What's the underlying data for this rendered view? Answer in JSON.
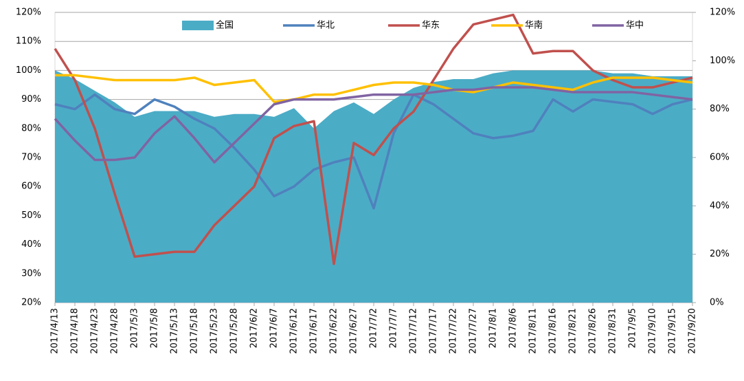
{
  "chart_data": {
    "type": "line",
    "categories": [
      "2017/4/13",
      "2017/4/18",
      "2017/4/23",
      "2017/4/28",
      "2017/5/3",
      "2017/5/8",
      "2017/5/13",
      "2017/5/18",
      "2017/5/23",
      "2017/5/28",
      "2017/6/2",
      "2017/6/7",
      "2017/6/12",
      "2017/6/17",
      "2017/6/22",
      "2017/6/27",
      "2017/7/2",
      "2017/7/7",
      "2017/7/12",
      "2017/7/17",
      "2017/7/22",
      "2017/7/27",
      "2017/8/1",
      "2017/8/6",
      "2017/8/11",
      "2017/8/16",
      "2017/8/21",
      "2017/8/26",
      "2017/8/31",
      "2017/9/5",
      "2017/9/10",
      "2017/9/15",
      "2017/9/20"
    ],
    "series": [
      {
        "name": "全国",
        "type": "area",
        "color": "#4bacc6",
        "values": [
          100,
          97,
          93,
          89,
          84,
          86,
          86,
          86,
          84,
          85,
          85,
          84,
          87,
          80,
          86,
          89,
          85,
          90,
          94,
          96,
          97,
          97,
          99,
          100,
          100,
          100,
          100,
          100,
          99,
          99,
          98,
          98,
          98
        ]
      },
      {
        "name": "华北",
        "type": "line",
        "axis": "y2",
        "color": "#4f81bd",
        "values": [
          82,
          80,
          86,
          80,
          78,
          84,
          81,
          76,
          72,
          64,
          55,
          44,
          48,
          55,
          58,
          60,
          39,
          70,
          86,
          82,
          76,
          70,
          68,
          69,
          71,
          84,
          79,
          84,
          83,
          82,
          78,
          82,
          84
        ]
      },
      {
        "name": "华东",
        "type": "line",
        "axis": "y2",
        "color": "#c0504d",
        "values": [
          105,
          92,
          72,
          45,
          19,
          20,
          21,
          21,
          32,
          40,
          48,
          68,
          73,
          75,
          16,
          66,
          61,
          72,
          79,
          92,
          105,
          115,
          117,
          119,
          103,
          104,
          104,
          96,
          92,
          89,
          89,
          91,
          93
        ]
      },
      {
        "name": "华南",
        "type": "line",
        "axis": "y2",
        "color": "#ffc000",
        "values": [
          94,
          94,
          93,
          92,
          92,
          92,
          92,
          93,
          90,
          91,
          92,
          83,
          84,
          86,
          86,
          88,
          90,
          91,
          91,
          90,
          88,
          87,
          89,
          91,
          90,
          89,
          88,
          91,
          93,
          93,
          93,
          92,
          91
        ]
      },
      {
        "name": "华中",
        "type": "line",
        "axis": "y2",
        "color": "#8064a2",
        "values": [
          76,
          67,
          59,
          59,
          60,
          70,
          77,
          68,
          58,
          66,
          74,
          82,
          84,
          84,
          84,
          85,
          86,
          86,
          86,
          87,
          88,
          88,
          89,
          89,
          89,
          88,
          87,
          87,
          87,
          87,
          86,
          85,
          84
        ]
      }
    ],
    "ylim": [
      20,
      120
    ],
    "yticks": [
      {
        "value": 20,
        "label": "20%"
      },
      {
        "value": 30,
        "label": "30%"
      },
      {
        "value": 40,
        "label": "40%"
      },
      {
        "value": 50,
        "label": "50%"
      },
      {
        "value": 60,
        "label": "60%"
      },
      {
        "value": 70,
        "label": "70%"
      },
      {
        "value": 80,
        "label": "80%"
      },
      {
        "value": 90,
        "label": "90%"
      },
      {
        "value": 100,
        "label": "100%"
      },
      {
        "value": 110,
        "label": "110%"
      },
      {
        "value": 120,
        "label": "120%"
      }
    ],
    "y2lim": [
      0,
      120
    ],
    "y2ticks": [
      {
        "value": 0,
        "label": "0%"
      },
      {
        "value": 20,
        "label": "20%"
      },
      {
        "value": 40,
        "label": "40%"
      },
      {
        "value": 60,
        "label": "60%"
      },
      {
        "value": 80,
        "label": "80%"
      },
      {
        "value": 100,
        "label": "100%"
      },
      {
        "value": 120,
        "label": "120%"
      }
    ],
    "grid": true,
    "legend": "top"
  }
}
